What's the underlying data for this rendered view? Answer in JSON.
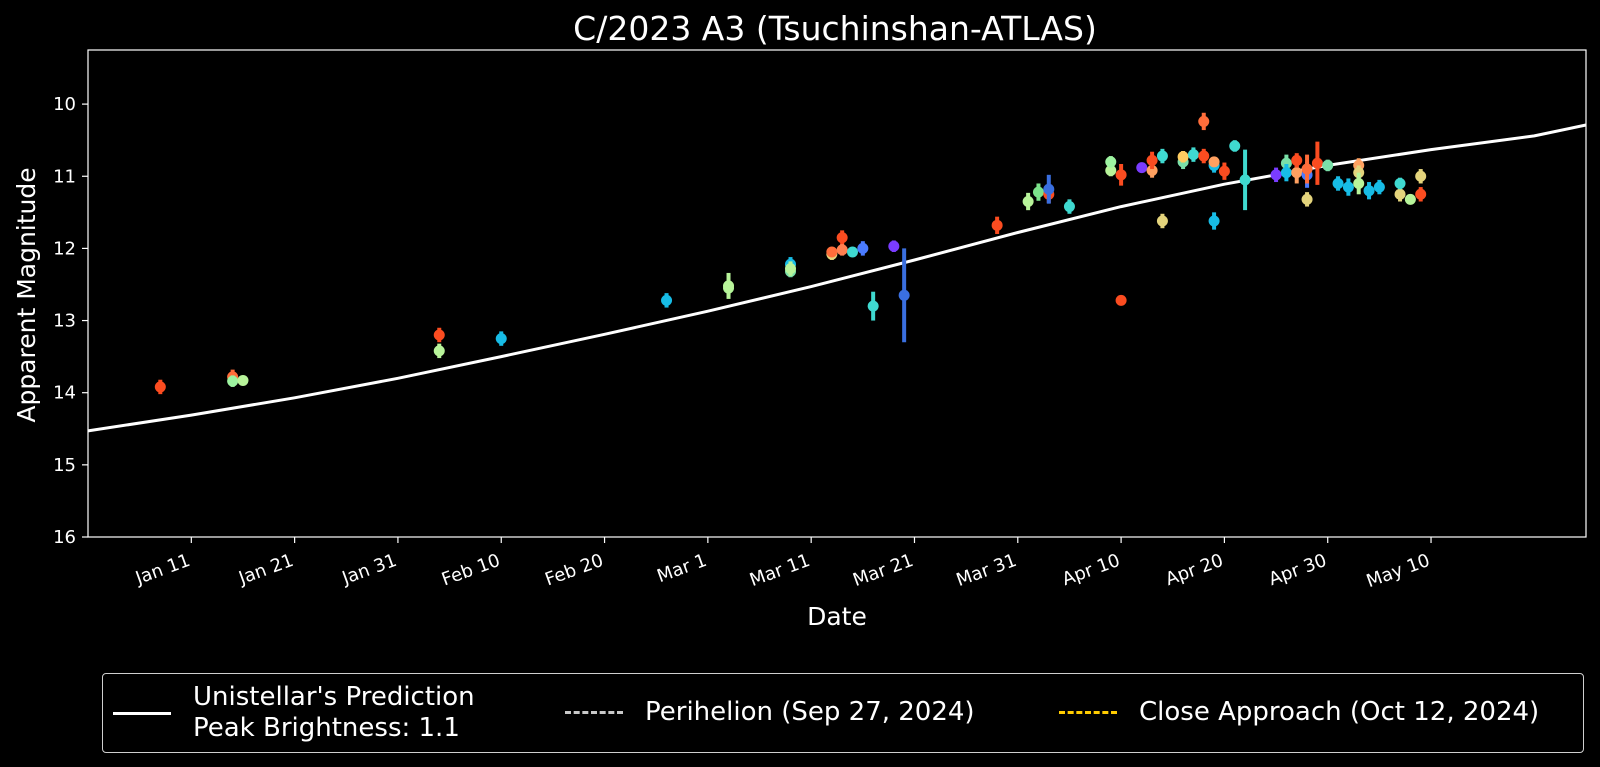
{
  "chart_data": {
    "type": "scatter",
    "title": "C/2023 A3 (Tsuchinshan-ATLAS)",
    "xlabel": "Date",
    "ylabel": "Apparent Magnitude",
    "x_axis": {
      "type": "date",
      "range": [
        "2024-01-01",
        "2024-05-25"
      ]
    },
    "y_axis": {
      "range": [
        16.0,
        9.25
      ],
      "inverted": true,
      "ticks": [
        10,
        11,
        12,
        13,
        14,
        15,
        16
      ]
    },
    "x_ticks": [
      {
        "date": "2024-01-11",
        "label": "Jan 11"
      },
      {
        "date": "2024-01-21",
        "label": "Jan 21"
      },
      {
        "date": "2024-01-31",
        "label": "Jan 31"
      },
      {
        "date": "2024-02-10",
        "label": "Feb 10"
      },
      {
        "date": "2024-02-20",
        "label": "Feb 20"
      },
      {
        "date": "2024-03-01",
        "label": "Mar 1"
      },
      {
        "date": "2024-03-11",
        "label": "Mar 11"
      },
      {
        "date": "2024-03-21",
        "label": "Mar 21"
      },
      {
        "date": "2024-03-31",
        "label": "Mar 31"
      },
      {
        "date": "2024-04-10",
        "label": "Apr 10"
      },
      {
        "date": "2024-04-20",
        "label": "Apr 20"
      },
      {
        "date": "2024-04-30",
        "label": "Apr 30"
      },
      {
        "date": "2024-05-10",
        "label": "May 10"
      }
    ],
    "grid": false,
    "legend_placement": "bottom",
    "prediction": {
      "name": "Unistellar's Prediction",
      "color": "#ffffff",
      "points": [
        {
          "x": "2024-01-01",
          "y": 14.53
        },
        {
          "x": "2024-01-11",
          "y": 14.31
        },
        {
          "x": "2024-01-21",
          "y": 14.07
        },
        {
          "x": "2024-01-31",
          "y": 13.8
        },
        {
          "x": "2024-02-10",
          "y": 13.5
        },
        {
          "x": "2024-02-20",
          "y": 13.19
        },
        {
          "x": "2024-03-01",
          "y": 12.87
        },
        {
          "x": "2024-03-11",
          "y": 12.53
        },
        {
          "x": "2024-03-21",
          "y": 12.16
        },
        {
          "x": "2024-03-31",
          "y": 11.78
        },
        {
          "x": "2024-04-10",
          "y": 11.42
        },
        {
          "x": "2024-04-20",
          "y": 11.11
        },
        {
          "x": "2024-04-30",
          "y": 10.85
        },
        {
          "x": "2024-05-10",
          "y": 10.63
        },
        {
          "x": "2024-05-20",
          "y": 10.44
        },
        {
          "x": "2024-05-25",
          "y": 10.29
        }
      ]
    },
    "observations": [
      {
        "x": "2024-01-08",
        "y": 13.92,
        "err": 0.1,
        "color": "#fb4c20"
      },
      {
        "x": "2024-01-15",
        "y": 13.78,
        "err": 0.1,
        "color": "#ff6d3a"
      },
      {
        "x": "2024-01-15",
        "y": 13.84,
        "err": 0.08,
        "color": "#9df3a0"
      },
      {
        "x": "2024-01-16",
        "y": 13.83,
        "err": 0.06,
        "color": "#b8f49a"
      },
      {
        "x": "2024-02-04",
        "y": 13.42,
        "err": 0.1,
        "color": "#b8f49a"
      },
      {
        "x": "2024-02-04",
        "y": 13.2,
        "err": 0.1,
        "color": "#fb4c20"
      },
      {
        "x": "2024-02-10",
        "y": 13.25,
        "err": 0.1,
        "color": "#17bce6"
      },
      {
        "x": "2024-02-26",
        "y": 12.72,
        "err": 0.1,
        "color": "#17bce6"
      },
      {
        "x": "2024-03-03",
        "y": 12.55,
        "err": 0.1,
        "color": "#b0f497"
      },
      {
        "x": "2024-03-03",
        "y": 12.52,
        "err": 0.18,
        "color": "#b8f49a"
      },
      {
        "x": "2024-03-09",
        "y": 12.32,
        "err": 0.08,
        "color": "#7ae0a8"
      },
      {
        "x": "2024-03-09",
        "y": 12.22,
        "err": 0.1,
        "color": "#17bce6"
      },
      {
        "x": "2024-03-09",
        "y": 12.28,
        "err": 0.1,
        "color": "#b8f49a"
      },
      {
        "x": "2024-03-13",
        "y": 12.08,
        "err": 0.08,
        "color": "#e4d47c"
      },
      {
        "x": "2024-03-13",
        "y": 12.05,
        "err": 0.06,
        "color": "#ff6d3a"
      },
      {
        "x": "2024-03-14",
        "y": 11.85,
        "err": 0.1,
        "color": "#fb4c20"
      },
      {
        "x": "2024-03-14",
        "y": 12.02,
        "err": 0.08,
        "color": "#ff7f50"
      },
      {
        "x": "2024-03-15",
        "y": 12.05,
        "err": 0.06,
        "color": "#3fd9d0"
      },
      {
        "x": "2024-03-16",
        "y": 12.0,
        "err": 0.1,
        "color": "#4a7bff"
      },
      {
        "x": "2024-03-17",
        "y": 12.8,
        "err": 0.2,
        "color": "#3fd9d0"
      },
      {
        "x": "2024-03-19",
        "y": 11.97,
        "err": 0.08,
        "color": "#7a3cff"
      },
      {
        "x": "2024-03-20",
        "y": 12.65,
        "err": 0.65,
        "color": "#3a6fe0"
      },
      {
        "x": "2024-03-29",
        "y": 11.68,
        "err": 0.12,
        "color": "#fb4c20"
      },
      {
        "x": "2024-04-01",
        "y": 11.35,
        "err": 0.12,
        "color": "#b8f49a"
      },
      {
        "x": "2024-04-02",
        "y": 11.22,
        "err": 0.12,
        "color": "#7be28a"
      },
      {
        "x": "2024-04-03",
        "y": 11.25,
        "err": 0.12,
        "color": "#fb4c20"
      },
      {
        "x": "2024-04-03",
        "y": 11.18,
        "err": 0.2,
        "color": "#3a6fe0"
      },
      {
        "x": "2024-04-05",
        "y": 11.42,
        "err": 0.1,
        "color": "#3fd9d0"
      },
      {
        "x": "2024-04-09",
        "y": 10.92,
        "err": 0.08,
        "color": "#b8f49a"
      },
      {
        "x": "2024-04-09",
        "y": 10.8,
        "err": 0.08,
        "color": "#9df3a0"
      },
      {
        "x": "2024-04-10",
        "y": 10.98,
        "err": 0.15,
        "color": "#fb4c20"
      },
      {
        "x": "2024-04-10",
        "y": 12.72,
        "err": 0.06,
        "color": "#fb4c20"
      },
      {
        "x": "2024-04-12",
        "y": 10.88,
        "err": 0.06,
        "color": "#7a3cff"
      },
      {
        "x": "2024-04-13",
        "y": 10.92,
        "err": 0.1,
        "color": "#ffa060"
      },
      {
        "x": "2024-04-13",
        "y": 10.78,
        "err": 0.12,
        "color": "#fb4c20"
      },
      {
        "x": "2024-04-14",
        "y": 11.62,
        "err": 0.1,
        "color": "#e4d47c"
      },
      {
        "x": "2024-04-14",
        "y": 10.72,
        "err": 0.1,
        "color": "#3fd9d0"
      },
      {
        "x": "2024-04-16",
        "y": 10.8,
        "err": 0.1,
        "color": "#7ae0a8"
      },
      {
        "x": "2024-04-16",
        "y": 10.73,
        "err": 0.08,
        "color": "#ffcc60"
      },
      {
        "x": "2024-04-17",
        "y": 10.7,
        "err": 0.1,
        "color": "#3fd9d0"
      },
      {
        "x": "2024-04-18",
        "y": 10.24,
        "err": 0.12,
        "color": "#ff6d3a"
      },
      {
        "x": "2024-04-18",
        "y": 10.72,
        "err": 0.1,
        "color": "#fb4c20"
      },
      {
        "x": "2024-04-19",
        "y": 11.62,
        "err": 0.12,
        "color": "#17bce6"
      },
      {
        "x": "2024-04-19",
        "y": 10.85,
        "err": 0.1,
        "color": "#17bce6"
      },
      {
        "x": "2024-04-19",
        "y": 10.8,
        "err": 0.06,
        "color": "#ffa060"
      },
      {
        "x": "2024-04-20",
        "y": 10.93,
        "err": 0.12,
        "color": "#fb4c20"
      },
      {
        "x": "2024-04-21",
        "y": 10.58,
        "err": 0.08,
        "color": "#3fd9d0"
      },
      {
        "x": "2024-04-22",
        "y": 11.05,
        "err": 0.42,
        "color": "#3fd9d0"
      },
      {
        "x": "2024-04-25",
        "y": 10.98,
        "err": 0.1,
        "color": "#7a3cff"
      },
      {
        "x": "2024-04-26",
        "y": 10.82,
        "err": 0.12,
        "color": "#7ae0a8"
      },
      {
        "x": "2024-04-26",
        "y": 10.95,
        "err": 0.12,
        "color": "#17bce6"
      },
      {
        "x": "2024-04-27",
        "y": 10.95,
        "err": 0.15,
        "color": "#ffa060"
      },
      {
        "x": "2024-04-27",
        "y": 10.78,
        "err": 0.1,
        "color": "#fb4c20"
      },
      {
        "x": "2024-04-28",
        "y": 11.32,
        "err": 0.1,
        "color": "#e4d47c"
      },
      {
        "x": "2024-04-28",
        "y": 10.98,
        "err": 0.18,
        "color": "#4a7bff"
      },
      {
        "x": "2024-04-28",
        "y": 10.9,
        "err": 0.2,
        "color": "#ff6d3a"
      },
      {
        "x": "2024-04-29",
        "y": 10.82,
        "err": 0.3,
        "color": "#fb4c20"
      },
      {
        "x": "2024-04-30",
        "y": 10.85,
        "err": 0.08,
        "color": "#7ae0a8"
      },
      {
        "x": "2024-05-01",
        "y": 11.1,
        "err": 0.1,
        "color": "#17bce6"
      },
      {
        "x": "2024-05-02",
        "y": 11.15,
        "err": 0.12,
        "color": "#17bce6"
      },
      {
        "x": "2024-05-03",
        "y": 10.85,
        "err": 0.1,
        "color": "#ffa060"
      },
      {
        "x": "2024-05-03",
        "y": 10.95,
        "err": 0.1,
        "color": "#e4d47c"
      },
      {
        "x": "2024-05-03",
        "y": 11.1,
        "err": 0.15,
        "color": "#b8f49a"
      },
      {
        "x": "2024-05-04",
        "y": 11.2,
        "err": 0.12,
        "color": "#17bce6"
      },
      {
        "x": "2024-05-05",
        "y": 11.15,
        "err": 0.1,
        "color": "#17bce6"
      },
      {
        "x": "2024-05-07",
        "y": 11.25,
        "err": 0.1,
        "color": "#e4d47c"
      },
      {
        "x": "2024-05-07",
        "y": 11.1,
        "err": 0.08,
        "color": "#3fd9d0"
      },
      {
        "x": "2024-05-08",
        "y": 11.32,
        "err": 0.06,
        "color": "#b8f49a"
      },
      {
        "x": "2024-05-09",
        "y": 11.0,
        "err": 0.1,
        "color": "#e4d47c"
      },
      {
        "x": "2024-05-09",
        "y": 11.25,
        "err": 0.1,
        "color": "#fb4c20"
      }
    ],
    "legend": [
      {
        "label": "Unistellar's Prediction\nPeak Brightness: 1.1",
        "style": "solid",
        "color": "#ffffff"
      },
      {
        "label": "Perihelion (Sep 27, 2024)",
        "style": "dashed",
        "color": "#c8c8c8"
      },
      {
        "label": "Close Approach (Oct 12, 2024)",
        "style": "dashed",
        "color": "#ffcc00"
      }
    ]
  }
}
